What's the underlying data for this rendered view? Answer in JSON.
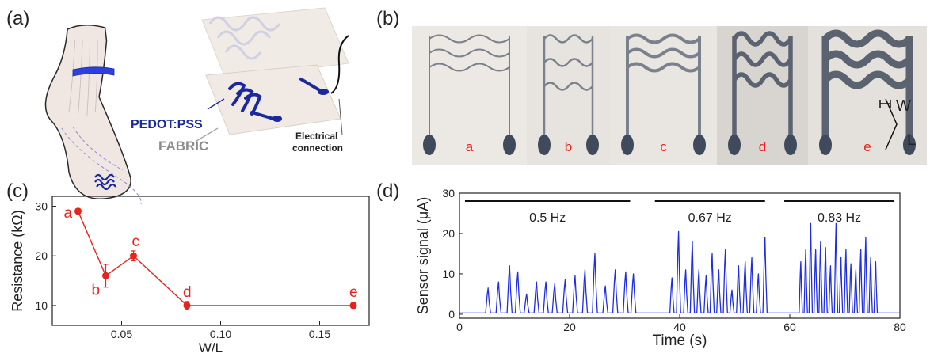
{
  "panels": {
    "a": "(a)",
    "b": "(b)",
    "c": "(c)",
    "d": "(d)"
  },
  "illustration": {
    "pedot_label": "PEDOT:PSS",
    "fabric_label": "FABRIC",
    "connection_label_line1": "Electrical",
    "connection_label_line2": "connection"
  },
  "photo": {
    "sample_labels": [
      "a",
      "b",
      "c",
      "d",
      "e"
    ],
    "w_label": "W",
    "l_label": "L"
  },
  "colors": {
    "resistance": "#e8221c",
    "signal": "#1f2ee6",
    "pedot": "#1a2a9c",
    "fabric_text": "#8c8c8c"
  },
  "chart_data": [
    {
      "type": "scatter",
      "xlabel": "W/L",
      "ylabel": "Resistance (kΩ)",
      "xlim": [
        0.015,
        0.175
      ],
      "ylim": [
        6,
        32
      ],
      "x_ticks": [
        "0.05",
        "0.10",
        "0.15"
      ],
      "x_tick_values": [
        0.05,
        0.1,
        0.15
      ],
      "y_ticks": [
        "10",
        "20",
        "30"
      ],
      "y_tick_values": [
        10,
        20,
        30
      ],
      "points": [
        {
          "label": "a",
          "x": 0.028,
          "y": 29,
          "err": 0.5
        },
        {
          "label": "b",
          "x": 0.042,
          "y": 16,
          "err": 2.3
        },
        {
          "label": "c",
          "x": 0.056,
          "y": 20,
          "err": 1.0
        },
        {
          "label": "d",
          "x": 0.083,
          "y": 10,
          "err": 0.8
        },
        {
          "label": "e",
          "x": 0.167,
          "y": 10,
          "err": 0.5
        }
      ]
    },
    {
      "type": "line",
      "xlabel": "Time (s)",
      "ylabel": "Sensor signal (μA)",
      "xlim": [
        0,
        80
      ],
      "ylim": [
        -1,
        30
      ],
      "x_ticks": [
        "0",
        "20",
        "40",
        "60",
        "80"
      ],
      "x_tick_values": [
        0,
        20,
        40,
        60,
        80
      ],
      "y_ticks": [
        "0",
        "10",
        "20",
        "30"
      ],
      "y_tick_values": [
        0,
        10,
        20,
        30
      ],
      "annotations": [
        {
          "label": "0.5 Hz",
          "x_start": 1,
          "x_end": 31
        },
        {
          "label": "0.67 Hz",
          "x_start": 35.5,
          "x_end": 55.5
        },
        {
          "label": "0.83 Hz",
          "x_start": 59,
          "x_end": 79
        }
      ],
      "peaks": [
        {
          "t": 5.2,
          "v": 6.5
        },
        {
          "t": 7.1,
          "v": 8
        },
        {
          "t": 9.1,
          "v": 12
        },
        {
          "t": 10.6,
          "v": 10.5
        },
        {
          "t": 12.2,
          "v": 5
        },
        {
          "t": 14.0,
          "v": 8
        },
        {
          "t": 15.7,
          "v": 8
        },
        {
          "t": 17.3,
          "v": 7.5
        },
        {
          "t": 19.2,
          "v": 8.5
        },
        {
          "t": 21.0,
          "v": 9.5
        },
        {
          "t": 22.8,
          "v": 11
        },
        {
          "t": 24.6,
          "v": 15
        },
        {
          "t": 26.5,
          "v": 7
        },
        {
          "t": 28.3,
          "v": 11
        },
        {
          "t": 30.2,
          "v": 10.5
        },
        {
          "t": 31.6,
          "v": 10
        },
        {
          "t": 38.6,
          "v": 9
        },
        {
          "t": 39.8,
          "v": 20.5
        },
        {
          "t": 41.1,
          "v": 11
        },
        {
          "t": 42.3,
          "v": 18
        },
        {
          "t": 43.5,
          "v": 11
        },
        {
          "t": 44.8,
          "v": 9.5
        },
        {
          "t": 45.9,
          "v": 15
        },
        {
          "t": 47.1,
          "v": 11
        },
        {
          "t": 48.3,
          "v": 16
        },
        {
          "t": 49.5,
          "v": 6
        },
        {
          "t": 50.7,
          "v": 12
        },
        {
          "t": 51.9,
          "v": 13
        },
        {
          "t": 53.1,
          "v": 14
        },
        {
          "t": 54.3,
          "v": 10
        },
        {
          "t": 55.5,
          "v": 19
        },
        {
          "t": 62.0,
          "v": 13
        },
        {
          "t": 62.9,
          "v": 16
        },
        {
          "t": 63.8,
          "v": 22.5
        },
        {
          "t": 64.7,
          "v": 16
        },
        {
          "t": 65.6,
          "v": 18
        },
        {
          "t": 66.5,
          "v": 16.5
        },
        {
          "t": 67.4,
          "v": 12
        },
        {
          "t": 68.4,
          "v": 22.5
        },
        {
          "t": 69.3,
          "v": 14
        },
        {
          "t": 70.2,
          "v": 16
        },
        {
          "t": 71.1,
          "v": 12.5
        },
        {
          "t": 72.0,
          "v": 11
        },
        {
          "t": 72.9,
          "v": 16
        },
        {
          "t": 73.8,
          "v": 19
        },
        {
          "t": 74.7,
          "v": 14
        },
        {
          "t": 75.6,
          "v": 13
        }
      ]
    }
  ]
}
